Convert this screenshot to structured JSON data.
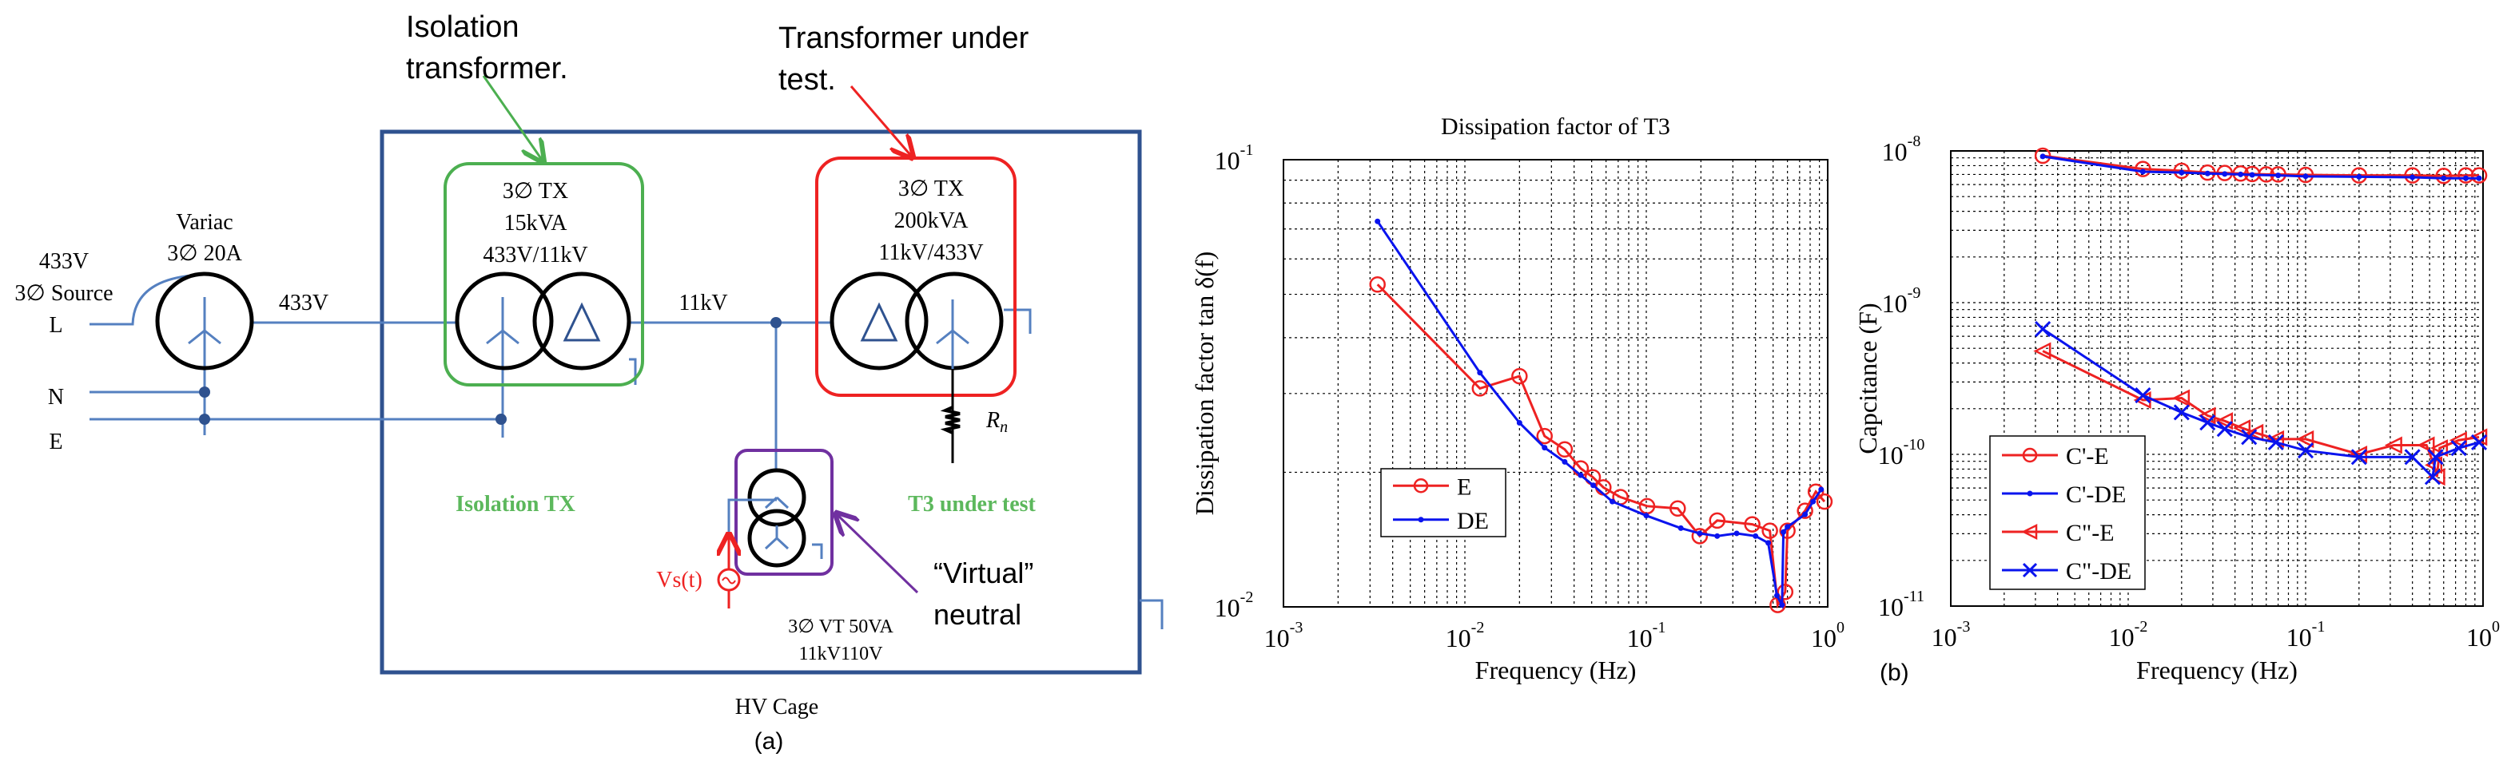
{
  "diagram": {
    "callout_isolation": [
      "Isolation",
      "transformer."
    ],
    "callout_tut": [
      "Transformer under",
      "test."
    ],
    "source": [
      "433V",
      "3∅ Source"
    ],
    "variac": [
      "Variac",
      "3∅ 20A"
    ],
    "line_labels": {
      "L": "L",
      "N": "N",
      "E": "E"
    },
    "v433": "433V",
    "v11k": "11kV",
    "iso_tx": [
      "3∅ TX",
      "15kVA",
      "433V/11kV"
    ],
    "t3_tx": [
      "3∅ TX",
      "200kVA",
      "11kV/433V"
    ],
    "iso_label": "Isolation TX",
    "t3_label": "T3 under test",
    "rn": "R",
    "rn_sub": "n",
    "vs": "Vs(t)",
    "virtual_neutral": [
      "“Virtual”",
      "neutral"
    ],
    "vt": [
      "3∅ VT 50VA",
      "11kV110V"
    ],
    "cage": "HV Cage",
    "panel_a": "(a)",
    "colors": {
      "wire": "#5580c0",
      "cage": "#2f528f",
      "iso_box": "#4caf50",
      "t3_box": "#ee2222",
      "vt_box": "#7030a0",
      "label_green": "#5cb85c"
    }
  },
  "panel_b": "(b)",
  "chart_data": [
    {
      "type": "line",
      "title": "Dissipation factor of T3",
      "xlabel": "Frequency (Hz)",
      "ylabel": "Dissipation factor tan δ(f)",
      "xscale": "log",
      "yscale": "log",
      "xlim": [
        0.001,
        1
      ],
      "ylim": [
        0.01,
        0.1
      ],
      "xticks": [
        {
          "base": "10",
          "exp": "-3"
        },
        {
          "base": "10",
          "exp": "-2"
        },
        {
          "base": "10",
          "exp": "-1"
        },
        {
          "base": "10",
          "exp": "0"
        }
      ],
      "yticks": [
        {
          "base": "10",
          "exp": "-2"
        },
        {
          "base": "10",
          "exp": "-1"
        }
      ],
      "grid": true,
      "legend": "center-left",
      "series": [
        {
          "name": "E",
          "color": "#ee2222",
          "marker": "circle",
          "x": [
            0.0033,
            0.0121,
            0.02,
            0.0275,
            0.0355,
            0.0435,
            0.0507,
            0.058,
            0.072,
            0.101,
            0.149,
            0.197,
            0.246,
            0.384,
            0.48,
            0.53,
            0.583,
            0.6,
            0.75,
            0.86,
            0.96
          ],
          "y": [
            0.0526,
            0.0308,
            0.0328,
            0.0241,
            0.0225,
            0.0204,
            0.0195,
            0.0185,
            0.0176,
            0.0168,
            0.0166,
            0.0144,
            0.0156,
            0.0153,
            0.0148,
            0.0101,
            0.0108,
            0.0148,
            0.0164,
            0.0181,
            0.0172
          ]
        },
        {
          "name": "DE",
          "color": "#0a14ee",
          "marker": "dot",
          "x": [
            0.0033,
            0.0121,
            0.02,
            0.0275,
            0.0355,
            0.0435,
            0.051,
            0.065,
            0.1,
            0.155,
            0.197,
            0.246,
            0.315,
            0.4,
            0.47,
            0.525,
            0.56,
            0.57,
            0.6,
            0.75,
            0.83,
            0.92
          ],
          "y": [
            0.0728,
            0.0334,
            0.0258,
            0.0227,
            0.0211,
            0.0197,
            0.0187,
            0.0172,
            0.016,
            0.015,
            0.0146,
            0.0144,
            0.0146,
            0.0144,
            0.0139,
            0.0106,
            0.0101,
            0.0147,
            0.0151,
            0.0161,
            0.0172,
            0.0183
          ]
        }
      ]
    },
    {
      "type": "line",
      "title": "",
      "xlabel": "Frequency (Hz)",
      "ylabel": "Capcitance (F)",
      "xscale": "log",
      "yscale": "log",
      "xlim": [
        0.001,
        1
      ],
      "ylim": [
        1e-11,
        1e-08
      ],
      "xticks": [
        {
          "base": "10",
          "exp": "-3"
        },
        {
          "base": "10",
          "exp": "-2"
        },
        {
          "base": "10",
          "exp": "-1"
        },
        {
          "base": "10",
          "exp": "0"
        }
      ],
      "yticks": [
        {
          "base": "10",
          "exp": "-11"
        },
        {
          "base": "10",
          "exp": "-10"
        },
        {
          "base": "10",
          "exp": "-9"
        },
        {
          "base": "10",
          "exp": "-8"
        }
      ],
      "grid": true,
      "legend": "bottom-left",
      "series": [
        {
          "name": "C'-E",
          "color": "#ee2222",
          "marker": "circle",
          "x": [
            0.0033,
            0.0121,
            0.02,
            0.028,
            0.035,
            0.043,
            0.05,
            0.06,
            0.07,
            0.1,
            0.2,
            0.4,
            0.6,
            0.8,
            0.95
          ],
          "y": [
            9.3e-09,
            7.6e-09,
            7.4e-09,
            7.2e-09,
            7.15e-09,
            7.1e-09,
            7.05e-09,
            7e-09,
            7e-09,
            6.95e-09,
            6.9e-09,
            6.9e-09,
            6.85e-09,
            6.9e-09,
            6.9e-09
          ]
        },
        {
          "name": "C'-DE",
          "color": "#0a14ee",
          "marker": "dot",
          "x": [
            0.0033,
            0.0121,
            0.02,
            0.028,
            0.035,
            0.043,
            0.05,
            0.07,
            0.1,
            0.2,
            0.4,
            0.6,
            0.8,
            0.95
          ],
          "y": [
            9.2e-09,
            7.3e-09,
            7.2e-09,
            7.1e-09,
            7.05e-09,
            7e-09,
            6.95e-09,
            6.9e-09,
            6.8e-09,
            6.75e-09,
            6.7e-09,
            6.6e-09,
            6.6e-09,
            6.6e-09
          ]
        },
        {
          "name": "C\"-E",
          "color": "#ee2222",
          "marker": "triangle-left",
          "x": [
            0.0033,
            0.0121,
            0.02,
            0.028,
            0.035,
            0.044,
            0.052,
            0.068,
            0.1,
            0.2,
            0.315,
            0.48,
            0.53,
            0.55,
            0.57,
            0.73,
            0.95
          ],
          "y": [
            4.8e-10,
            2.28e-10,
            2.35e-10,
            1.8e-10,
            1.66e-10,
            1.49e-10,
            1.39e-10,
            1.26e-10,
            1.26e-10,
            1e-10,
            1.15e-10,
            1.15e-10,
            8.5e-11,
            7.1e-11,
            1.1e-10,
            1.24e-10,
            1.3e-10
          ]
        },
        {
          "name": "C\"-DE",
          "color": "#0a14ee",
          "marker": "x",
          "x": [
            0.0033,
            0.0121,
            0.02,
            0.028,
            0.035,
            0.048,
            0.068,
            0.1,
            0.2,
            0.4,
            0.52,
            0.54,
            0.73,
            0.95
          ],
          "y": [
            6.7e-10,
            2.45e-10,
            1.89e-10,
            1.62e-10,
            1.47e-10,
            1.3e-10,
            1.2e-10,
            1.06e-10,
            9.6e-11,
            9.6e-11,
            7.1e-11,
            9.6e-11,
            1.1e-10,
            1.2e-10
          ]
        }
      ]
    }
  ]
}
